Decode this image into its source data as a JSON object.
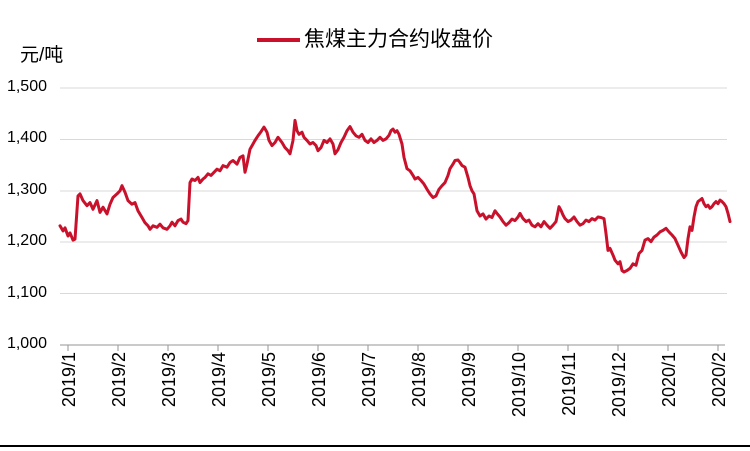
{
  "chart": {
    "unit_label": "元/吨",
    "legend_label": "焦煤主力合约收盘价",
    "y_tick_labels": [
      "1,500",
      "1,400",
      "1,300",
      "1,200",
      "1,100",
      "1,000"
    ],
    "x_tick_labels": [
      "2019/1",
      "2019/2",
      "2019/3",
      "2019/4",
      "2019/5",
      "2019/6",
      "2019/7",
      "2019/8",
      "2019/9",
      "2019/10",
      "2019/11",
      "2019/12",
      "2020/1",
      "2020/2"
    ]
  },
  "colors": {
    "line": "#C9112C",
    "grid": "#D9D9D9",
    "axis": "#969696",
    "text": "#000000",
    "border": "#000000"
  },
  "chart_data": {
    "type": "line",
    "title": "",
    "ylabel": "元/吨",
    "ylim": [
      1000,
      1500
    ],
    "y_tick_step": 100,
    "grid": "horizontal",
    "legend_position": "top-center",
    "x_ticks": [
      "2019/1",
      "2019/2",
      "2019/3",
      "2019/4",
      "2019/5",
      "2019/6",
      "2019/7",
      "2019/8",
      "2019/9",
      "2019/10",
      "2019/11",
      "2019/12",
      "2020/1",
      "2020/2"
    ],
    "x_note": "t in fractional months, tick k of x_ticks at t = k",
    "series": [
      {
        "name": "焦煤主力合约收盘价",
        "color": "#C9112C",
        "points": [
          [
            -0.16,
            1232
          ],
          [
            -0.1,
            1222
          ],
          [
            -0.06,
            1228
          ],
          [
            0.0,
            1212
          ],
          [
            0.04,
            1218
          ],
          [
            0.1,
            1204
          ],
          [
            0.14,
            1206
          ],
          [
            0.2,
            1290
          ],
          [
            0.24,
            1294
          ],
          [
            0.3,
            1281
          ],
          [
            0.38,
            1271
          ],
          [
            0.44,
            1277
          ],
          [
            0.5,
            1264
          ],
          [
            0.58,
            1281
          ],
          [
            0.64,
            1258
          ],
          [
            0.7,
            1268
          ],
          [
            0.78,
            1255
          ],
          [
            0.84,
            1274
          ],
          [
            0.9,
            1287
          ],
          [
            0.98,
            1294
          ],
          [
            1.04,
            1300
          ],
          [
            1.08,
            1310
          ],
          [
            1.14,
            1297
          ],
          [
            1.2,
            1281
          ],
          [
            1.28,
            1274
          ],
          [
            1.34,
            1277
          ],
          [
            1.4,
            1261
          ],
          [
            1.48,
            1248
          ],
          [
            1.54,
            1238
          ],
          [
            1.6,
            1232
          ],
          [
            1.64,
            1225
          ],
          [
            1.7,
            1232
          ],
          [
            1.78,
            1229
          ],
          [
            1.84,
            1235
          ],
          [
            1.9,
            1228
          ],
          [
            1.98,
            1225
          ],
          [
            2.04,
            1232
          ],
          [
            2.08,
            1239
          ],
          [
            2.14,
            1232
          ],
          [
            2.2,
            1242
          ],
          [
            2.26,
            1245
          ],
          [
            2.3,
            1239
          ],
          [
            2.36,
            1236
          ],
          [
            2.4,
            1242
          ],
          [
            2.44,
            1316
          ],
          [
            2.48,
            1323
          ],
          [
            2.54,
            1320
          ],
          [
            2.6,
            1326
          ],
          [
            2.64,
            1316
          ],
          [
            2.7,
            1323
          ],
          [
            2.74,
            1326
          ],
          [
            2.8,
            1333
          ],
          [
            2.86,
            1330
          ],
          [
            2.92,
            1336
          ],
          [
            2.98,
            1342
          ],
          [
            3.04,
            1339
          ],
          [
            3.1,
            1349
          ],
          [
            3.18,
            1346
          ],
          [
            3.24,
            1355
          ],
          [
            3.3,
            1359
          ],
          [
            3.38,
            1352
          ],
          [
            3.44,
            1365
          ],
          [
            3.5,
            1368
          ],
          [
            3.54,
            1336
          ],
          [
            3.58,
            1352
          ],
          [
            3.64,
            1381
          ],
          [
            3.7,
            1391
          ],
          [
            3.74,
            1398
          ],
          [
            3.8,
            1407
          ],
          [
            3.86,
            1415
          ],
          [
            3.92,
            1424
          ],
          [
            3.98,
            1414
          ],
          [
            4.02,
            1398
          ],
          [
            4.08,
            1388
          ],
          [
            4.14,
            1394
          ],
          [
            4.2,
            1404
          ],
          [
            4.28,
            1394
          ],
          [
            4.34,
            1384
          ],
          [
            4.4,
            1378
          ],
          [
            4.44,
            1372
          ],
          [
            4.5,
            1398
          ],
          [
            4.54,
            1437
          ],
          [
            4.58,
            1417
          ],
          [
            4.62,
            1410
          ],
          [
            4.68,
            1414
          ],
          [
            4.72,
            1404
          ],
          [
            4.78,
            1398
          ],
          [
            4.84,
            1391
          ],
          [
            4.9,
            1394
          ],
          [
            4.96,
            1388
          ],
          [
            5.0,
            1378
          ],
          [
            5.06,
            1384
          ],
          [
            5.12,
            1398
          ],
          [
            5.18,
            1394
          ],
          [
            5.24,
            1401
          ],
          [
            5.3,
            1391
          ],
          [
            5.34,
            1372
          ],
          [
            5.4,
            1380
          ],
          [
            5.46,
            1394
          ],
          [
            5.52,
            1404
          ],
          [
            5.58,
            1417
          ],
          [
            5.64,
            1425
          ],
          [
            5.7,
            1414
          ],
          [
            5.76,
            1407
          ],
          [
            5.82,
            1404
          ],
          [
            5.88,
            1410
          ],
          [
            5.94,
            1398
          ],
          [
            6.0,
            1394
          ],
          [
            6.06,
            1401
          ],
          [
            6.12,
            1394
          ],
          [
            6.18,
            1398
          ],
          [
            6.24,
            1404
          ],
          [
            6.3,
            1398
          ],
          [
            6.36,
            1401
          ],
          [
            6.42,
            1408
          ],
          [
            6.46,
            1417
          ],
          [
            6.5,
            1420
          ],
          [
            6.54,
            1414
          ],
          [
            6.58,
            1417
          ],
          [
            6.62,
            1410
          ],
          [
            6.68,
            1391
          ],
          [
            6.72,
            1365
          ],
          [
            6.78,
            1343
          ],
          [
            6.84,
            1339
          ],
          [
            6.9,
            1330
          ],
          [
            6.94,
            1323
          ],
          [
            7.0,
            1326
          ],
          [
            7.06,
            1320
          ],
          [
            7.12,
            1313
          ],
          [
            7.18,
            1303
          ],
          [
            7.24,
            1294
          ],
          [
            7.3,
            1287
          ],
          [
            7.36,
            1290
          ],
          [
            7.42,
            1303
          ],
          [
            7.48,
            1310
          ],
          [
            7.54,
            1316
          ],
          [
            7.6,
            1330
          ],
          [
            7.64,
            1343
          ],
          [
            7.7,
            1352
          ],
          [
            7.74,
            1359
          ],
          [
            7.8,
            1360
          ],
          [
            7.84,
            1355
          ],
          [
            7.88,
            1349
          ],
          [
            7.94,
            1346
          ],
          [
            8.0,
            1326
          ],
          [
            8.04,
            1310
          ],
          [
            8.08,
            1300
          ],
          [
            8.12,
            1294
          ],
          [
            8.18,
            1261
          ],
          [
            8.24,
            1251
          ],
          [
            8.3,
            1255
          ],
          [
            8.36,
            1245
          ],
          [
            8.42,
            1251
          ],
          [
            8.48,
            1248
          ],
          [
            8.54,
            1261
          ],
          [
            8.58,
            1256
          ],
          [
            8.64,
            1249
          ],
          [
            8.7,
            1240
          ],
          [
            8.76,
            1233
          ],
          [
            8.82,
            1238
          ],
          [
            8.88,
            1245
          ],
          [
            8.94,
            1242
          ],
          [
            9.0,
            1249
          ],
          [
            9.04,
            1256
          ],
          [
            9.1,
            1246
          ],
          [
            9.16,
            1240
          ],
          [
            9.22,
            1243
          ],
          [
            9.28,
            1233
          ],
          [
            9.34,
            1230
          ],
          [
            9.4,
            1236
          ],
          [
            9.46,
            1230
          ],
          [
            9.52,
            1240
          ],
          [
            9.58,
            1233
          ],
          [
            9.64,
            1227
          ],
          [
            9.7,
            1233
          ],
          [
            9.76,
            1240
          ],
          [
            9.82,
            1269
          ],
          [
            9.86,
            1262
          ],
          [
            9.9,
            1253
          ],
          [
            9.94,
            1246
          ],
          [
            10.0,
            1240
          ],
          [
            10.06,
            1243
          ],
          [
            10.12,
            1249
          ],
          [
            10.18,
            1240
          ],
          [
            10.24,
            1233
          ],
          [
            10.3,
            1236
          ],
          [
            10.36,
            1243
          ],
          [
            10.42,
            1240
          ],
          [
            10.48,
            1246
          ],
          [
            10.54,
            1243
          ],
          [
            10.6,
            1249
          ],
          [
            10.66,
            1248
          ],
          [
            10.72,
            1246
          ],
          [
            10.76,
            1217
          ],
          [
            10.8,
            1184
          ],
          [
            10.84,
            1188
          ],
          [
            10.9,
            1175
          ],
          [
            10.94,
            1165
          ],
          [
            11.0,
            1158
          ],
          [
            11.04,
            1162
          ],
          [
            11.08,
            1145
          ],
          [
            11.12,
            1142
          ],
          [
            11.18,
            1145
          ],
          [
            11.24,
            1149
          ],
          [
            11.3,
            1158
          ],
          [
            11.36,
            1155
          ],
          [
            11.42,
            1178
          ],
          [
            11.48,
            1184
          ],
          [
            11.54,
            1204
          ],
          [
            11.6,
            1207
          ],
          [
            11.66,
            1201
          ],
          [
            11.72,
            1210
          ],
          [
            11.78,
            1214
          ],
          [
            11.84,
            1220
          ],
          [
            11.9,
            1223
          ],
          [
            11.96,
            1227
          ],
          [
            12.02,
            1220
          ],
          [
            12.08,
            1214
          ],
          [
            12.14,
            1207
          ],
          [
            12.2,
            1194
          ],
          [
            12.26,
            1181
          ],
          [
            12.32,
            1170
          ],
          [
            12.36,
            1175
          ],
          [
            12.4,
            1207
          ],
          [
            12.44,
            1230
          ],
          [
            12.48,
            1223
          ],
          [
            12.52,
            1249
          ],
          [
            12.56,
            1269
          ],
          [
            12.6,
            1279
          ],
          [
            12.64,
            1282
          ],
          [
            12.68,
            1285
          ],
          [
            12.72,
            1275
          ],
          [
            12.76,
            1269
          ],
          [
            12.8,
            1272
          ],
          [
            12.84,
            1266
          ],
          [
            12.88,
            1269
          ],
          [
            12.92,
            1275
          ],
          [
            12.96,
            1279
          ],
          [
            13.0,
            1275
          ],
          [
            13.04,
            1282
          ],
          [
            13.08,
            1279
          ],
          [
            13.12,
            1275
          ],
          [
            13.16,
            1269
          ],
          [
            13.2,
            1256
          ],
          [
            13.24,
            1240
          ]
        ]
      }
    ]
  }
}
